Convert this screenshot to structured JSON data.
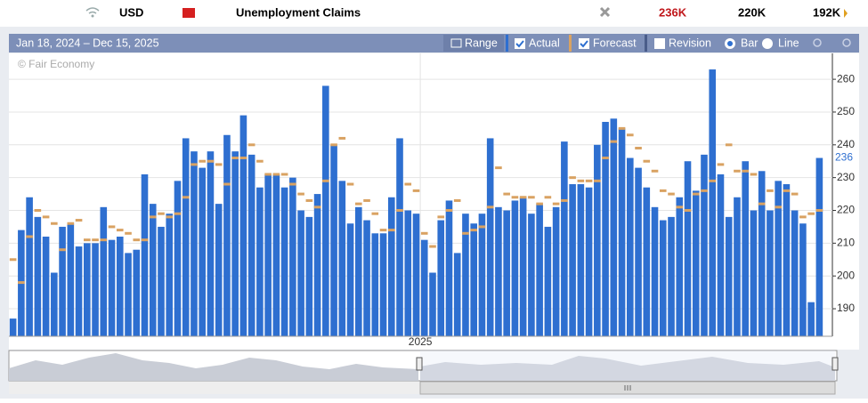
{
  "header": {
    "currency": "USD",
    "event": "Unemployment Claims",
    "actual": "236K",
    "forecast": "220K",
    "previous": "192K"
  },
  "toolbar": {
    "range_text": "Jan 18, 2024 – Dec 15, 2025",
    "range_button": "Range",
    "revision": "Revision",
    "bar": "Bar",
    "line": "Line"
  },
  "chart_data": {
    "type": "bar",
    "watermark": "© Fair Economy",
    "categories": [
      null,
      null,
      null,
      null,
      null,
      null,
      null,
      null,
      null,
      null,
      null,
      null,
      null,
      null,
      null,
      null,
      null,
      null,
      null,
      null,
      null,
      null,
      null,
      null,
      null,
      null,
      null,
      null,
      null,
      null,
      null,
      null,
      null,
      null,
      null,
      null,
      null,
      null,
      null,
      null,
      null,
      null,
      null,
      null,
      null,
      null,
      null,
      null,
      null,
      null,
      "2025",
      null,
      null,
      null,
      null,
      null,
      null,
      null,
      null,
      null,
      null,
      null,
      null,
      null,
      null,
      null,
      null,
      null,
      null,
      null,
      null,
      null,
      null,
      null,
      null,
      null,
      null,
      null,
      null,
      null,
      null,
      null,
      null,
      null,
      null,
      null,
      null,
      null,
      null,
      null,
      null,
      null,
      null,
      null,
      null,
      null,
      null,
      null,
      null
    ],
    "series": [
      {
        "name": "Actual",
        "color": "#2e6fd0",
        "values": [
          187,
          214,
          224,
          218,
          212,
          201,
          215,
          216,
          209,
          210,
          210,
          221,
          211,
          212,
          207,
          208,
          231,
          222,
          215,
          219,
          229,
          242,
          238,
          233,
          238,
          222,
          243,
          238,
          249,
          237,
          227,
          231,
          231,
          227,
          230,
          220,
          218,
          225,
          258,
          240,
          229,
          216,
          221,
          217,
          213,
          213,
          224,
          242,
          220,
          219,
          211,
          201,
          217,
          223,
          207,
          219,
          216,
          219,
          242,
          221,
          220,
          223,
          224,
          219,
          222,
          215,
          221,
          241,
          228,
          228,
          227,
          240,
          247,
          248,
          245,
          236,
          233,
          227,
          221,
          217,
          218,
          224,
          235,
          226,
          237,
          263,
          231,
          218,
          224,
          235,
          220,
          232,
          220,
          229,
          228,
          220,
          216,
          192,
          236
        ]
      },
      {
        "name": "Forecast",
        "color": "#d9a262",
        "values": [
          205,
          198,
          212,
          220,
          218,
          216,
          208,
          216,
          217,
          211,
          211,
          211,
          215,
          214,
          213,
          211,
          211,
          218,
          219,
          218,
          219,
          224,
          234,
          235,
          235,
          234,
          228,
          236,
          236,
          240,
          235,
          231,
          231,
          231,
          228,
          225,
          223,
          221,
          229,
          240,
          242,
          228,
          222,
          223,
          219,
          214,
          214,
          220,
          228,
          226,
          213,
          209,
          218,
          220,
          223,
          213,
          214,
          215,
          221,
          233,
          225,
          224,
          224,
          224,
          222,
          224,
          222,
          223,
          230,
          229,
          229,
          229,
          236,
          241,
          245,
          243,
          239,
          235,
          232,
          226,
          225,
          221,
          220,
          225,
          226,
          229,
          234,
          240,
          232,
          232,
          231,
          222,
          226,
          221,
          226,
          225,
          218,
          219,
          220
        ]
      }
    ],
    "ylim": [
      181.6,
      267.9
    ],
    "yticks": [
      190,
      200,
      210,
      220,
      230,
      240,
      250,
      260
    ],
    "grid": true
  }
}
